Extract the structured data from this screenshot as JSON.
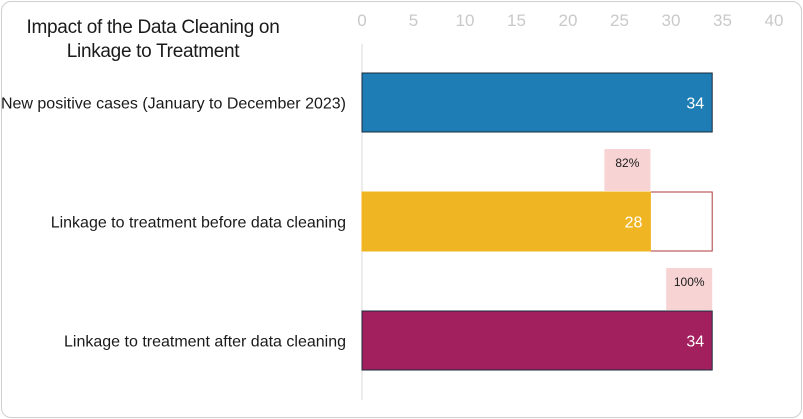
{
  "chart_data": {
    "type": "bar",
    "orientation": "horizontal",
    "title": "Impact of the Data Cleaning on Linkage to Treatment",
    "xlim": [
      0,
      40
    ],
    "xticks": [
      0,
      5,
      10,
      15,
      20,
      25,
      30,
      35,
      40
    ],
    "grid": false,
    "categories": [
      "New positive cases (January to December 2023)",
      "Linkage to treatment before data cleaning",
      "Linkage to treatment after data cleaning"
    ],
    "values": [
      34,
      28,
      34
    ],
    "data_labels": [
      "34",
      "28",
      "34"
    ],
    "reference_values": [
      null,
      34,
      null
    ],
    "percent_labels": [
      null,
      "82%",
      "100%"
    ],
    "colors": [
      "#1f7db5",
      "#f0b523",
      "#a3205f"
    ],
    "reference_outline_color": "#b03a3a",
    "percent_label_bg": "#f7d3d3"
  }
}
